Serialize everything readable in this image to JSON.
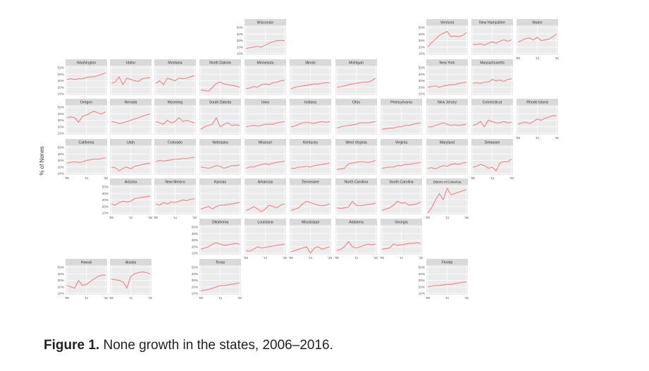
{
  "caption": {
    "label": "Figure 1.",
    "text": " None growth in the states, 2006–2016."
  },
  "chart_data": {
    "type": "line",
    "layout": "small multiples, tile grid map of US states",
    "ylabel": "% of Nones",
    "ylim": [
      10,
      50
    ],
    "y_ticks": [
      "10%",
      "20%",
      "30%",
      "40%",
      "50%"
    ],
    "x_ticks": [
      "'06",
      "'11",
      "'16"
    ],
    "x_years": [
      2006,
      2007,
      2008,
      2009,
      2010,
      2011,
      2012,
      2013,
      2014,
      2015,
      2016
    ],
    "line_color": "#f08a8a",
    "panel_bg": "#ebebeb",
    "strip_bg": "#d9d9d9",
    "states": [
      {
        "name": "Wisconsin",
        "col": 5,
        "row": 0,
        "values": [
          18,
          19,
          20,
          21,
          20,
          23,
          26,
          28,
          30,
          30,
          30
        ]
      },
      {
        "name": "Vermont",
        "col": 9,
        "row": 0,
        "values": [
          20,
          27,
          32,
          38,
          41,
          44,
          36,
          37,
          36,
          38,
          42
        ]
      },
      {
        "name": "New Hampshire",
        "col": 10,
        "row": 0,
        "values": [
          24,
          24,
          25,
          23,
          26,
          28,
          26,
          29,
          31,
          29,
          31
        ]
      },
      {
        "name": "Maine",
        "col": 11,
        "row": 0,
        "values": [
          28,
          30,
          33,
          34,
          31,
          35,
          30,
          31,
          32,
          36,
          40
        ]
      },
      {
        "name": "Washington",
        "col": 1,
        "row": 1,
        "values": [
          32,
          33,
          32,
          33,
          33,
          35,
          36,
          36,
          38,
          40,
          42
        ]
      },
      {
        "name": "Idaho",
        "col": 2,
        "row": 1,
        "values": [
          26,
          28,
          36,
          24,
          34,
          32,
          30,
          29,
          33,
          34,
          35
        ]
      },
      {
        "name": "Montana",
        "col": 3,
        "row": 1,
        "values": [
          26,
          30,
          24,
          34,
          32,
          30,
          34,
          33,
          34,
          36,
          38
        ]
      },
      {
        "name": "North Dakota",
        "col": 4,
        "row": 1,
        "values": [
          16,
          15,
          14,
          20,
          26,
          28,
          25,
          24,
          23,
          22,
          20
        ]
      },
      {
        "name": "Minnesota",
        "col": 5,
        "row": 1,
        "values": [
          18,
          19,
          21,
          20,
          24,
          25,
          24,
          27,
          28,
          30,
          31
        ]
      },
      {
        "name": "Illinois",
        "col": 6,
        "row": 1,
        "values": [
          18,
          20,
          21,
          22,
          23,
          24,
          25,
          25,
          26,
          27,
          27
        ]
      },
      {
        "name": "Michigan",
        "col": 7,
        "row": 1,
        "values": [
          20,
          21,
          22,
          24,
          25,
          26,
          27,
          28,
          28,
          30,
          34
        ]
      },
      {
        "name": "New York",
        "col": 9,
        "row": 1,
        "values": [
          20,
          21,
          22,
          20,
          22,
          23,
          24,
          24,
          26,
          27,
          28
        ]
      },
      {
        "name": "Massachusetts",
        "col": 10,
        "row": 1,
        "values": [
          26,
          27,
          26,
          28,
          28,
          32,
          30,
          31,
          29,
          32,
          33
        ]
      },
      {
        "name": "Oregon",
        "col": 1,
        "row": 2,
        "values": [
          34,
          35,
          34,
          27,
          36,
          38,
          41,
          44,
          41,
          40,
          43
        ]
      },
      {
        "name": "Nevada",
        "col": 2,
        "row": 2,
        "values": [
          28,
          27,
          25,
          26,
          28,
          30,
          32,
          34,
          36,
          38,
          40
        ]
      },
      {
        "name": "Wyoming",
        "col": 3,
        "row": 2,
        "values": [
          28,
          26,
          24,
          30,
          26,
          28,
          34,
          28,
          30,
          28,
          26
        ]
      },
      {
        "name": "South Dakota",
        "col": 4,
        "row": 2,
        "values": [
          16,
          20,
          22,
          24,
          34,
          20,
          24,
          26,
          22,
          23,
          22
        ]
      },
      {
        "name": "Iowa",
        "col": 5,
        "row": 2,
        "values": [
          20,
          21,
          22,
          21,
          22,
          24,
          24,
          24,
          26,
          27,
          28
        ]
      },
      {
        "name": "Indiana",
        "col": 6,
        "row": 2,
        "values": [
          20,
          21,
          24,
          26,
          27,
          26,
          25,
          27,
          28,
          27,
          28
        ]
      },
      {
        "name": "Ohio",
        "col": 7,
        "row": 2,
        "values": [
          18,
          20,
          21,
          22,
          23,
          24,
          26,
          26,
          26,
          27,
          28
        ]
      },
      {
        "name": "Pennsylvania",
        "col": 8,
        "row": 2,
        "values": [
          16,
          17,
          18,
          18,
          20,
          20,
          22,
          22,
          24,
          25,
          26
        ]
      },
      {
        "name": "New Jersey",
        "col": 9,
        "row": 2,
        "values": [
          20,
          20,
          22,
          24,
          26,
          24,
          22,
          23,
          22,
          23,
          24
        ]
      },
      {
        "name": "Connecticut",
        "col": 10,
        "row": 2,
        "values": [
          22,
          24,
          28,
          20,
          30,
          28,
          26,
          26,
          28,
          26,
          27
        ]
      },
      {
        "name": "Rhode Island",
        "col": 11,
        "row": 2,
        "values": [
          24,
          26,
          27,
          25,
          28,
          32,
          30,
          33,
          35,
          37,
          37
        ]
      },
      {
        "name": "California",
        "col": 1,
        "row": 3,
        "values": [
          26,
          27,
          28,
          27,
          28,
          30,
          31,
          32,
          32,
          33,
          34
        ]
      },
      {
        "name": "Utah",
        "col": 2,
        "row": 3,
        "values": [
          20,
          19,
          14,
          18,
          20,
          17,
          21,
          22,
          24,
          25,
          26
        ]
      },
      {
        "name": "Colorado",
        "col": 3,
        "row": 3,
        "values": [
          28,
          30,
          29,
          30,
          31,
          32,
          32,
          33,
          33,
          34,
          35
        ]
      },
      {
        "name": "Nebraska",
        "col": 4,
        "row": 3,
        "values": [
          20,
          19,
          18,
          20,
          22,
          21,
          18,
          20,
          22,
          22,
          23
        ]
      },
      {
        "name": "Missouri",
        "col": 5,
        "row": 3,
        "values": [
          18,
          20,
          20,
          22,
          24,
          25,
          24,
          26,
          27,
          28,
          29
        ]
      },
      {
        "name": "Kentucky",
        "col": 6,
        "row": 3,
        "values": [
          18,
          18,
          20,
          20,
          21,
          20,
          22,
          23,
          24,
          25,
          26
        ]
      },
      {
        "name": "West Virginia",
        "col": 7,
        "row": 3,
        "values": [
          16,
          17,
          18,
          25,
          26,
          27,
          28,
          28,
          27,
          28,
          30
        ]
      },
      {
        "name": "Virginia",
        "col": 8,
        "row": 3,
        "values": [
          18,
          19,
          20,
          20,
          22,
          22,
          24,
          24,
          25,
          26,
          27
        ]
      },
      {
        "name": "Maryland",
        "col": 9,
        "row": 3,
        "values": [
          18,
          19,
          17,
          20,
          22,
          21,
          24,
          25,
          24,
          26,
          27
        ]
      },
      {
        "name": "Delaware",
        "col": 10,
        "row": 3,
        "values": [
          20,
          21,
          24,
          22,
          18,
          20,
          14,
          26,
          28,
          28,
          32
        ]
      },
      {
        "name": "Arizona",
        "col": 2,
        "row": 4,
        "values": [
          24,
          22,
          26,
          28,
          27,
          28,
          32,
          33,
          34,
          35,
          36
        ]
      },
      {
        "name": "New Mexico",
        "col": 3,
        "row": 4,
        "values": [
          24,
          22,
          26,
          24,
          27,
          26,
          28,
          30,
          29,
          31,
          32
        ]
      },
      {
        "name": "Kansas",
        "col": 4,
        "row": 4,
        "values": [
          16,
          18,
          20,
          16,
          20,
          22,
          22,
          23,
          24,
          25,
          26
        ]
      },
      {
        "name": "Arkansas",
        "col": 5,
        "row": 4,
        "values": [
          14,
          16,
          20,
          16,
          12,
          16,
          22,
          20,
          18,
          22,
          24
        ]
      },
      {
        "name": "Tennessee",
        "col": 6,
        "row": 4,
        "values": [
          14,
          16,
          18,
          24,
          28,
          26,
          24,
          22,
          21,
          22,
          24
        ]
      },
      {
        "name": "North Carolina",
        "col": 7,
        "row": 4,
        "values": [
          18,
          17,
          18,
          19,
          28,
          22,
          21,
          22,
          23,
          24,
          25
        ]
      },
      {
        "name": "South Carolina",
        "col": 8,
        "row": 4,
        "values": [
          14,
          16,
          18,
          22,
          28,
          25,
          26,
          22,
          23,
          24,
          27
        ]
      },
      {
        "name": "District of Columbia",
        "col": 9,
        "row": 4,
        "values": [
          10,
          18,
          30,
          40,
          30,
          48,
          38,
          40,
          42,
          44,
          46
        ]
      },
      {
        "name": "Oklahoma",
        "col": 4,
        "row": 5,
        "values": [
          16,
          18,
          20,
          24,
          26,
          24,
          22,
          23,
          24,
          25,
          24
        ]
      },
      {
        "name": "Louisiana",
        "col": 5,
        "row": 5,
        "values": [
          14,
          13,
          16,
          20,
          18,
          19,
          20,
          21,
          22,
          23,
          24
        ]
      },
      {
        "name": "Mississippi",
        "col": 6,
        "row": 5,
        "values": [
          12,
          14,
          16,
          18,
          20,
          10,
          18,
          20,
          16,
          18,
          20
        ]
      },
      {
        "name": "Alabama",
        "col": 7,
        "row": 5,
        "values": [
          14,
          16,
          20,
          28,
          20,
          18,
          20,
          22,
          24,
          23,
          24
        ]
      },
      {
        "name": "Georgia",
        "col": 8,
        "row": 5,
        "values": [
          16,
          17,
          18,
          24,
          22,
          23,
          24,
          25,
          25,
          26,
          25
        ]
      },
      {
        "name": "Hawaii",
        "col": 1,
        "row": 6,
        "values": [
          22,
          20,
          18,
          30,
          22,
          24,
          28,
          32,
          36,
          38,
          38
        ]
      },
      {
        "name": "Alaska",
        "col": 2,
        "row": 6,
        "values": [
          32,
          31,
          30,
          28,
          18,
          36,
          40,
          42,
          43,
          42,
          40
        ]
      },
      {
        "name": "Texas",
        "col": 4,
        "row": 6,
        "values": [
          14,
          15,
          16,
          18,
          20,
          22,
          22,
          23,
          24,
          25,
          26
        ]
      },
      {
        "name": "Florida",
        "col": 9,
        "row": 6,
        "values": [
          20,
          21,
          22,
          22,
          23,
          24,
          24,
          25,
          26,
          27,
          28
        ]
      }
    ]
  }
}
